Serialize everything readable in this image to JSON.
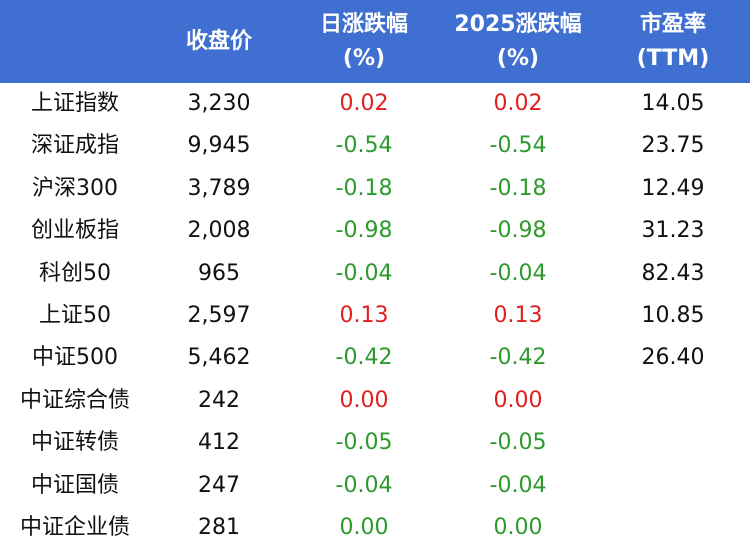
{
  "header": {
    "col_name": "",
    "col_close": "收盘价",
    "col_day_line1": "日涨跌幅",
    "col_day_line2": "(%)",
    "col_ytd_line1": "2025涨跌幅",
    "col_ytd_line2": "(%)",
    "col_pe_line1": "市盈率",
    "col_pe_line2": "(TTM)"
  },
  "colors": {
    "header_bg": "#3f6fd0",
    "up": "#e02020",
    "down": "#2c9a2c"
  },
  "rows": [
    {
      "name": "上证指数",
      "close": "3,230",
      "day": "0.02",
      "ytd": "0.02",
      "pe": "14.05",
      "trend": "pos"
    },
    {
      "name": "深证成指",
      "close": "9,945",
      "day": "-0.54",
      "ytd": "-0.54",
      "pe": "23.75",
      "trend": "neg"
    },
    {
      "name": "沪深300",
      "close": "3,789",
      "day": "-0.18",
      "ytd": "-0.18",
      "pe": "12.49",
      "trend": "neg"
    },
    {
      "name": "创业板指",
      "close": "2,008",
      "day": "-0.98",
      "ytd": "-0.98",
      "pe": "31.23",
      "trend": "neg"
    },
    {
      "name": "科创50",
      "close": "965",
      "day": "-0.04",
      "ytd": "-0.04",
      "pe": "82.43",
      "trend": "neg"
    },
    {
      "name": "上证50",
      "close": "2,597",
      "day": "0.13",
      "ytd": "0.13",
      "pe": "10.85",
      "trend": "pos"
    },
    {
      "name": "中证500",
      "close": "5,462",
      "day": "-0.42",
      "ytd": "-0.42",
      "pe": "26.40",
      "trend": "neg"
    },
    {
      "name": "中证综合债",
      "close": "242",
      "day": "0.00",
      "ytd": "0.00",
      "pe": "",
      "trend": "flat"
    },
    {
      "name": "中证转债",
      "close": "412",
      "day": "-0.05",
      "ytd": "-0.05",
      "pe": "",
      "trend": "neg"
    },
    {
      "name": "中证国债",
      "close": "247",
      "day": "-0.04",
      "ytd": "-0.04",
      "pe": "",
      "trend": "neg"
    },
    {
      "name": "中证企业债",
      "close": "281",
      "day": "0.00",
      "ytd": "0.00",
      "pe": "",
      "trend": "flat-g"
    }
  ]
}
